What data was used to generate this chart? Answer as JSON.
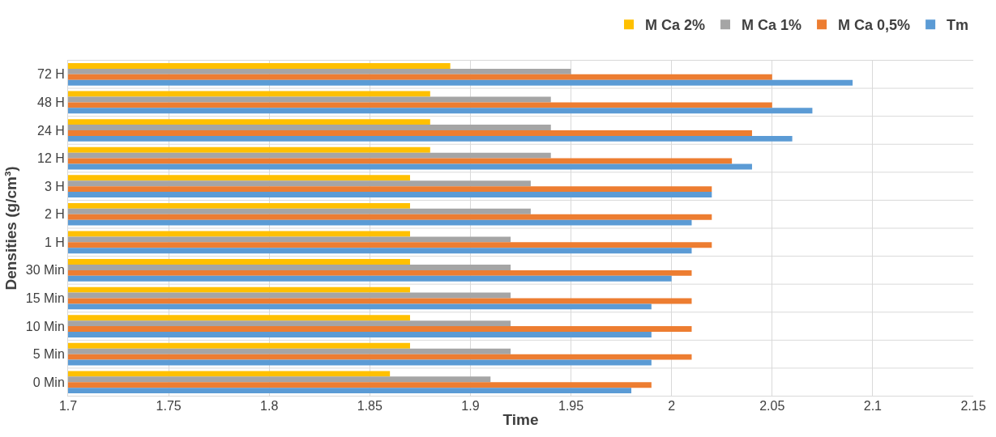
{
  "chart_data": {
    "type": "bar",
    "orientation": "horizontal",
    "xlabel": "Time",
    "ylabel": "Densities (g/cm³)",
    "categories": [
      "72 H",
      "48 H",
      "24 H",
      "12 H",
      "3 H",
      "2 H",
      "1 H",
      "30 Min",
      "15 Min",
      "10 Min",
      "5 Min",
      "0 Min"
    ],
    "series": [
      {
        "name": "M Ca 2%",
        "color": "#ffc000",
        "values": [
          1.89,
          1.88,
          1.88,
          1.88,
          1.87,
          1.87,
          1.87,
          1.87,
          1.87,
          1.87,
          1.87,
          1.86
        ]
      },
      {
        "name": "M Ca 1%",
        "color": "#a5a5a5",
        "values": [
          1.95,
          1.94,
          1.94,
          1.94,
          1.93,
          1.93,
          1.92,
          1.92,
          1.92,
          1.92,
          1.92,
          1.91
        ]
      },
      {
        "name": "M Ca 0,5%",
        "color": "#ed7d31",
        "values": [
          2.05,
          2.05,
          2.04,
          2.03,
          2.02,
          2.02,
          2.02,
          2.01,
          2.01,
          2.01,
          2.01,
          1.99
        ]
      },
      {
        "name": "Tm",
        "color": "#5b9bd5",
        "values": [
          2.09,
          2.07,
          2.06,
          2.04,
          2.02,
          2.01,
          2.01,
          2.0,
          1.99,
          1.99,
          1.99,
          1.98
        ]
      }
    ],
    "xlim": [
      1.7,
      2.15
    ],
    "xticks": [
      1.7,
      1.75,
      1.8,
      1.85,
      1.9,
      1.95,
      2,
      2.05,
      2.1,
      2.15
    ],
    "grid": true,
    "legend": "top right"
  }
}
